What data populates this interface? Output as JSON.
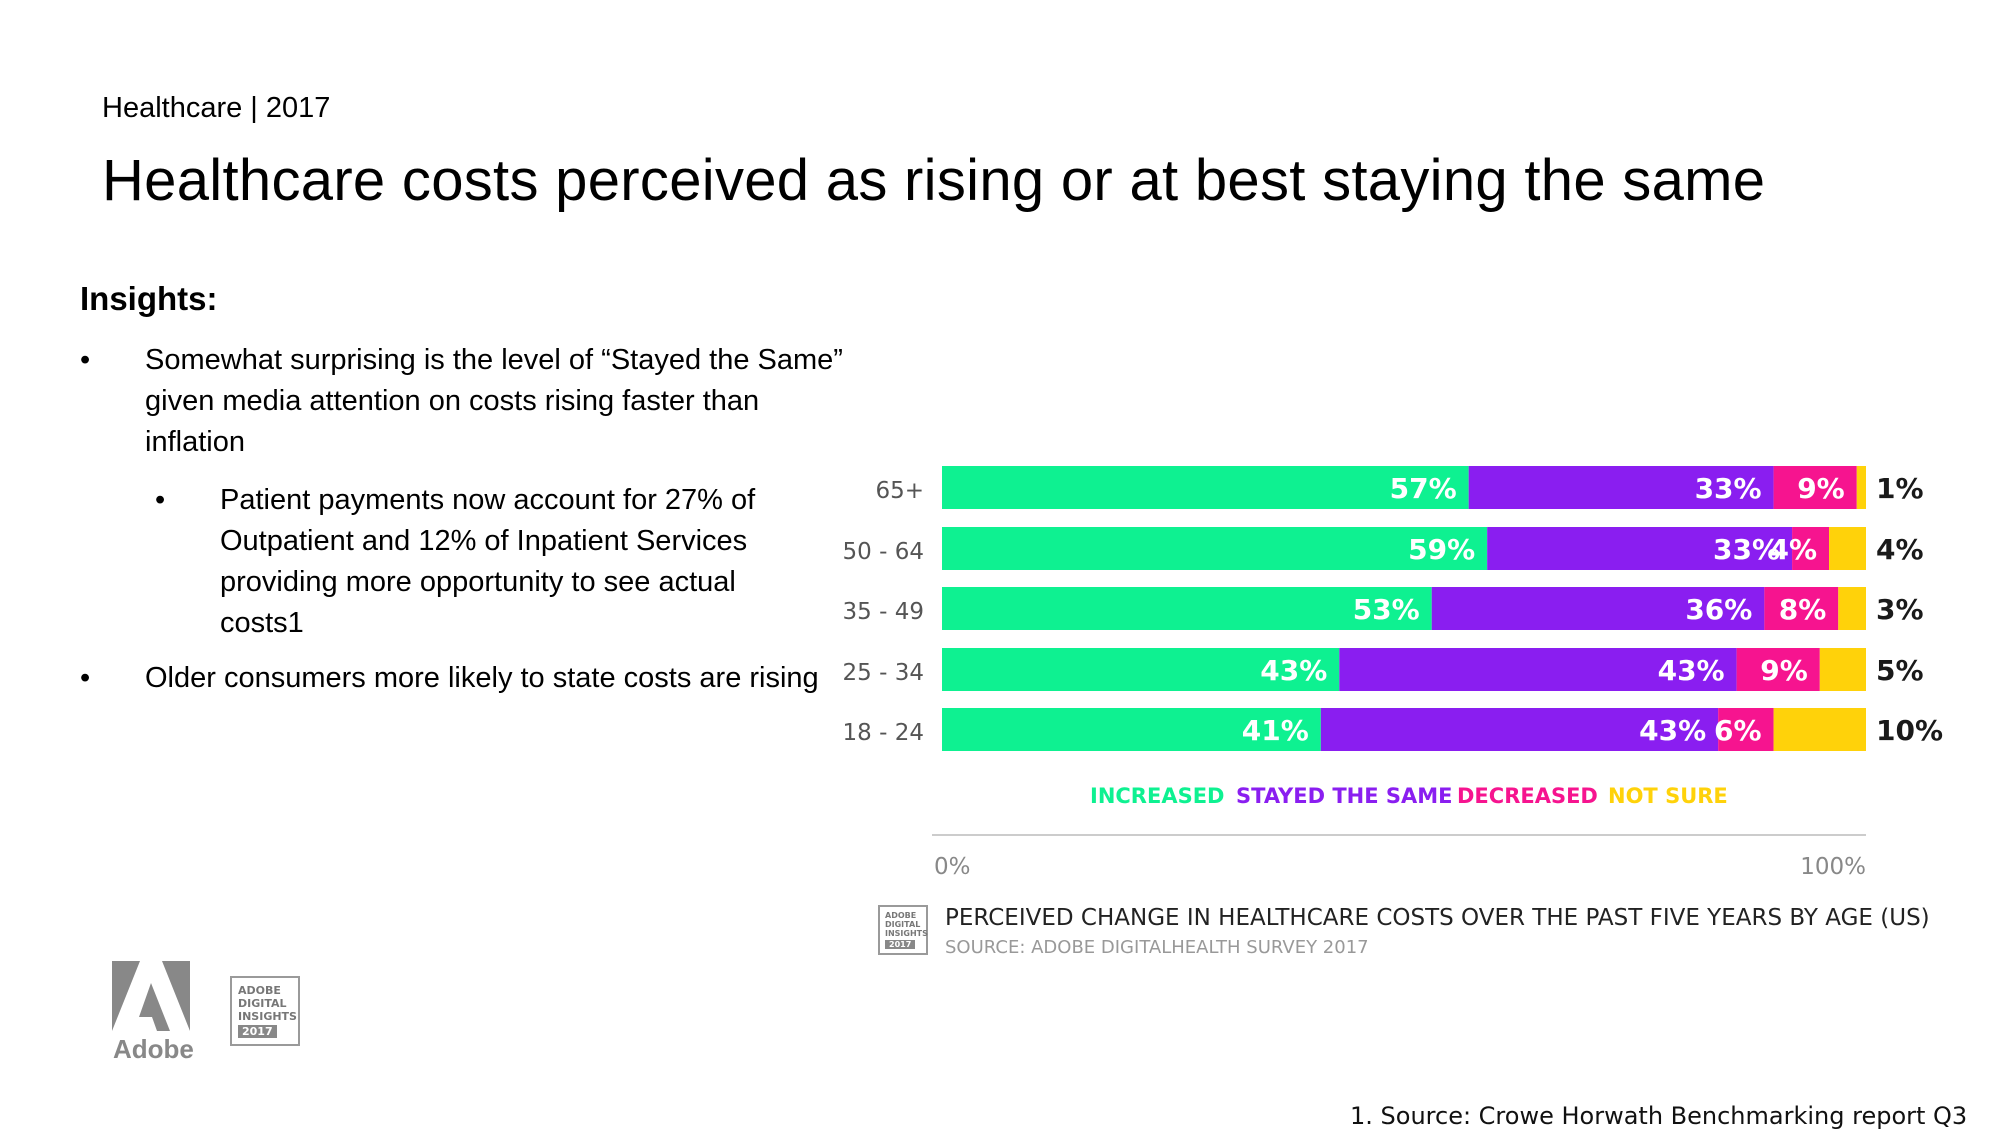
{
  "header": {
    "kicker": "Healthcare | 2017",
    "title": "Healthcare costs perceived as rising or at best staying the same"
  },
  "insights": {
    "heading": "Insights:",
    "bullet_symbol": "•",
    "bullets": [
      {
        "text": "Somewhat surprising is the level of “Stayed the Same” given media attention on costs rising faster than inflation"
      },
      {
        "text": "Patient payments now account for 27% of Outpatient and 12% of Inpatient Services providing more opportunity to see actual costs1"
      },
      {
        "text": "Older consumers more likely to state costs are rising"
      }
    ]
  },
  "colors": {
    "increased": "#0ef191",
    "stayed": "#8a1ef0",
    "decreased": "#f6148f",
    "not_sure": "#ffd20a",
    "axis": "#cccccc"
  },
  "chart_data": {
    "type": "bar",
    "orientation": "horizontal",
    "stacked": true,
    "title": "PERCEIVED CHANGE IN HEALTHCARE COSTS OVER THE PAST FIVE YEARS BY AGE (US)",
    "source": "SOURCE: ADOBE DIGITALHEALTH SURVEY 2017",
    "categories": [
      "65+",
      "50 - 64",
      "35 - 49",
      "25 - 34",
      "18 - 24"
    ],
    "series": [
      {
        "name": "INCREASED",
        "values": [
          57,
          59,
          53,
          43,
          41
        ],
        "labels": [
          "57%",
          "59%",
          "53%",
          "43%",
          "41%"
        ]
      },
      {
        "name": "STAYED THE SAME",
        "values": [
          33,
          33,
          36,
          43,
          43
        ],
        "labels": [
          "33%",
          "33%",
          "36%",
          "43%",
          "43%"
        ]
      },
      {
        "name": "DECREASED",
        "values": [
          9,
          4,
          8,
          9,
          6
        ],
        "labels": [
          "9%",
          "4%",
          "8%",
          "9%",
          "6%"
        ]
      },
      {
        "name": "NOT SURE",
        "values": [
          1,
          4,
          3,
          5,
          10
        ],
        "labels": [
          "1%",
          "4%",
          "3%",
          "5%",
          "10%"
        ]
      }
    ],
    "xlim": [
      0,
      100
    ],
    "x_ticks": [
      "0%",
      "100%"
    ],
    "legend": "below-bars"
  },
  "badges": {
    "brand_lines": [
      "ADOBE",
      "DIGITAL",
      "INSIGHTS"
    ],
    "year": "2017"
  },
  "logo": {
    "text": "Adobe"
  },
  "footnote": "1. Source: Crowe Horwath Benchmarking report Q3"
}
